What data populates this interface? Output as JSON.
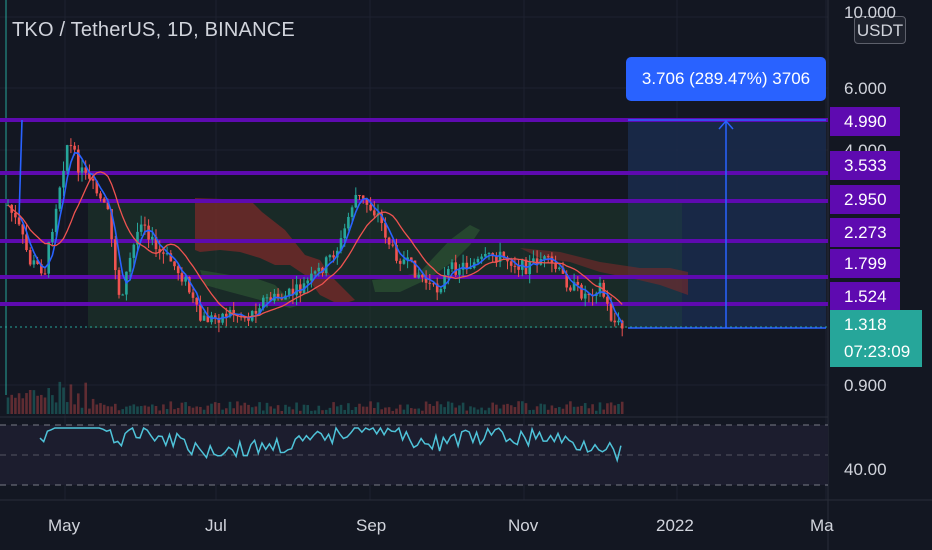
{
  "header": {
    "title": "TKO / TetherUS, 1D, BINANCE"
  },
  "currency_button": {
    "label": "USDT"
  },
  "projection": {
    "label": "3.706 (289.47%) 3706"
  },
  "price_axis": {
    "ticks": [
      "10.000",
      "6.000",
      "4.000",
      "0.900"
    ],
    "rsi_tick": "40.00"
  },
  "level_tags": [
    "4.990",
    "3.533",
    "2.950",
    "2.273",
    "1.799",
    "1.524"
  ],
  "last_price": {
    "price": "1.318",
    "countdown": "07:23:09"
  },
  "time_axis": {
    "labels": [
      "May",
      "Jul",
      "Sep",
      "Nov",
      "2022",
      "Ma"
    ]
  },
  "colors": {
    "background": "#131722",
    "level_line": "#5e0ab0",
    "price_line": "#2962ff",
    "last_price": "#26a69a",
    "up": "#26a69a",
    "down": "#ef5350"
  }
}
